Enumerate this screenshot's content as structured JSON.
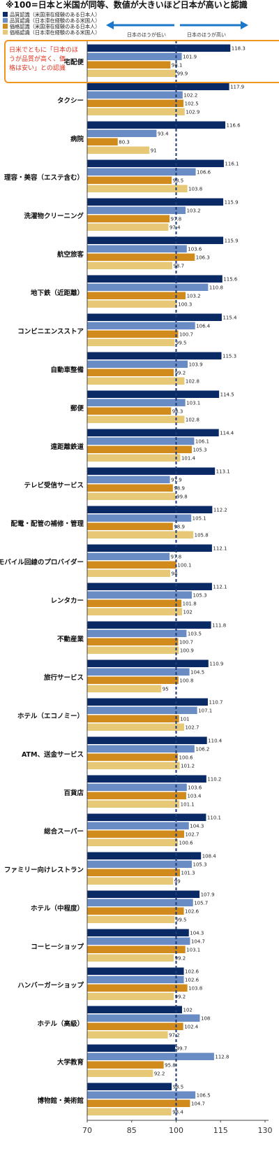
{
  "chart_data": {
    "type": "bar",
    "orientation": "horizontal",
    "title": "※100=日本と米国が同等、数値が大きいほど日本が高いと認識",
    "xlim": [
      70,
      130
    ],
    "x_ticks": [
      70,
      85,
      100,
      115,
      130
    ],
    "reference_line": 100,
    "direction_labels": {
      "left": "日本のほうが低い",
      "right": "日本のほうが高い"
    },
    "annotation": "日米でともに「日本のほうが品質が高く、価格は安い」との認識",
    "legend_position": "top-left",
    "colors": [
      "#0a2a66",
      "#6a8cc4",
      "#d18a1c",
      "#e6c877"
    ],
    "series": [
      {
        "name": "品質認識（米国滞在経験のある日本人）",
        "values": [
          118.3,
          117.9,
          116.6,
          116.1,
          115.9,
          115.9,
          115.6,
          115.4,
          115.3,
          114.5,
          114.4,
          113.1,
          112.2,
          112.1,
          112.1,
          111.8,
          110.9,
          110.7,
          110.4,
          110.2,
          110.1,
          108.4,
          107.9,
          104.3,
          102.6,
          102,
          99.7,
          98.5
        ]
      },
      {
        "name": "品質認識（日本滞在経験のある米国人）",
        "values": [
          101.9,
          102.2,
          93.4,
          106.6,
          103.2,
          103.6,
          110.8,
          106.4,
          103.9,
          103.1,
          106.1,
          97.9,
          105.1,
          97.8,
          105.3,
          103.5,
          104.5,
          107.1,
          106.2,
          103.6,
          104.3,
          105.3,
          105.7,
          104.7,
          102.6,
          108,
          112.8,
          106.5
        ]
      },
      {
        "name": "価格認識（米国滞在経験のある日本人）",
        "values": [
          98.1,
          102.5,
          80.3,
          98.5,
          97.8,
          106.3,
          103.2,
          100.7,
          99.2,
          98.3,
          105.3,
          98.9,
          98.9,
          100.1,
          101.8,
          100.7,
          100.8,
          101,
          100.6,
          103.4,
          102.7,
          101.3,
          102.6,
          103.1,
          103.8,
          102.4,
          95.8,
          104.7
        ]
      },
      {
        "name": "価格認識（日本滞在経験のある米国人）",
        "values": [
          99.9,
          102.9,
          91,
          103.8,
          97.4,
          98.7,
          100.3,
          99.5,
          102.8,
          102.8,
          101.4,
          99.8,
          105.8,
          98,
          102,
          100.9,
          95,
          102.7,
          101.2,
          101.1,
          100.6,
          99,
          99.5,
          99.2,
          99.2,
          97.2,
          92.2,
          98.4
        ]
      }
    ],
    "categories": [
      "宅配便",
      "タクシー",
      "病院",
      "理容・美容（エステ含む）",
      "洗濯物クリーニング",
      "航空旅客",
      "地下鉄（近距離）",
      "コンビニエンスストア",
      "自動車整備",
      "郵便",
      "遠距離鉄道",
      "テレビ受信サービス",
      "配電・配管の補修・管理",
      "モバイル回線のプロバイダー",
      "レンタカー",
      "不動産業",
      "旅行サービス",
      "ホテル（エコノミー）",
      "ATM、送金サービス",
      "百貨店",
      "総合スーパー",
      "ファミリー向けレストラン",
      "ホテル（中程度）",
      "コーヒーショップ",
      "ハンバーガーショップ",
      "ホテル（高級）",
      "大学教育",
      "博物館・美術館"
    ]
  }
}
